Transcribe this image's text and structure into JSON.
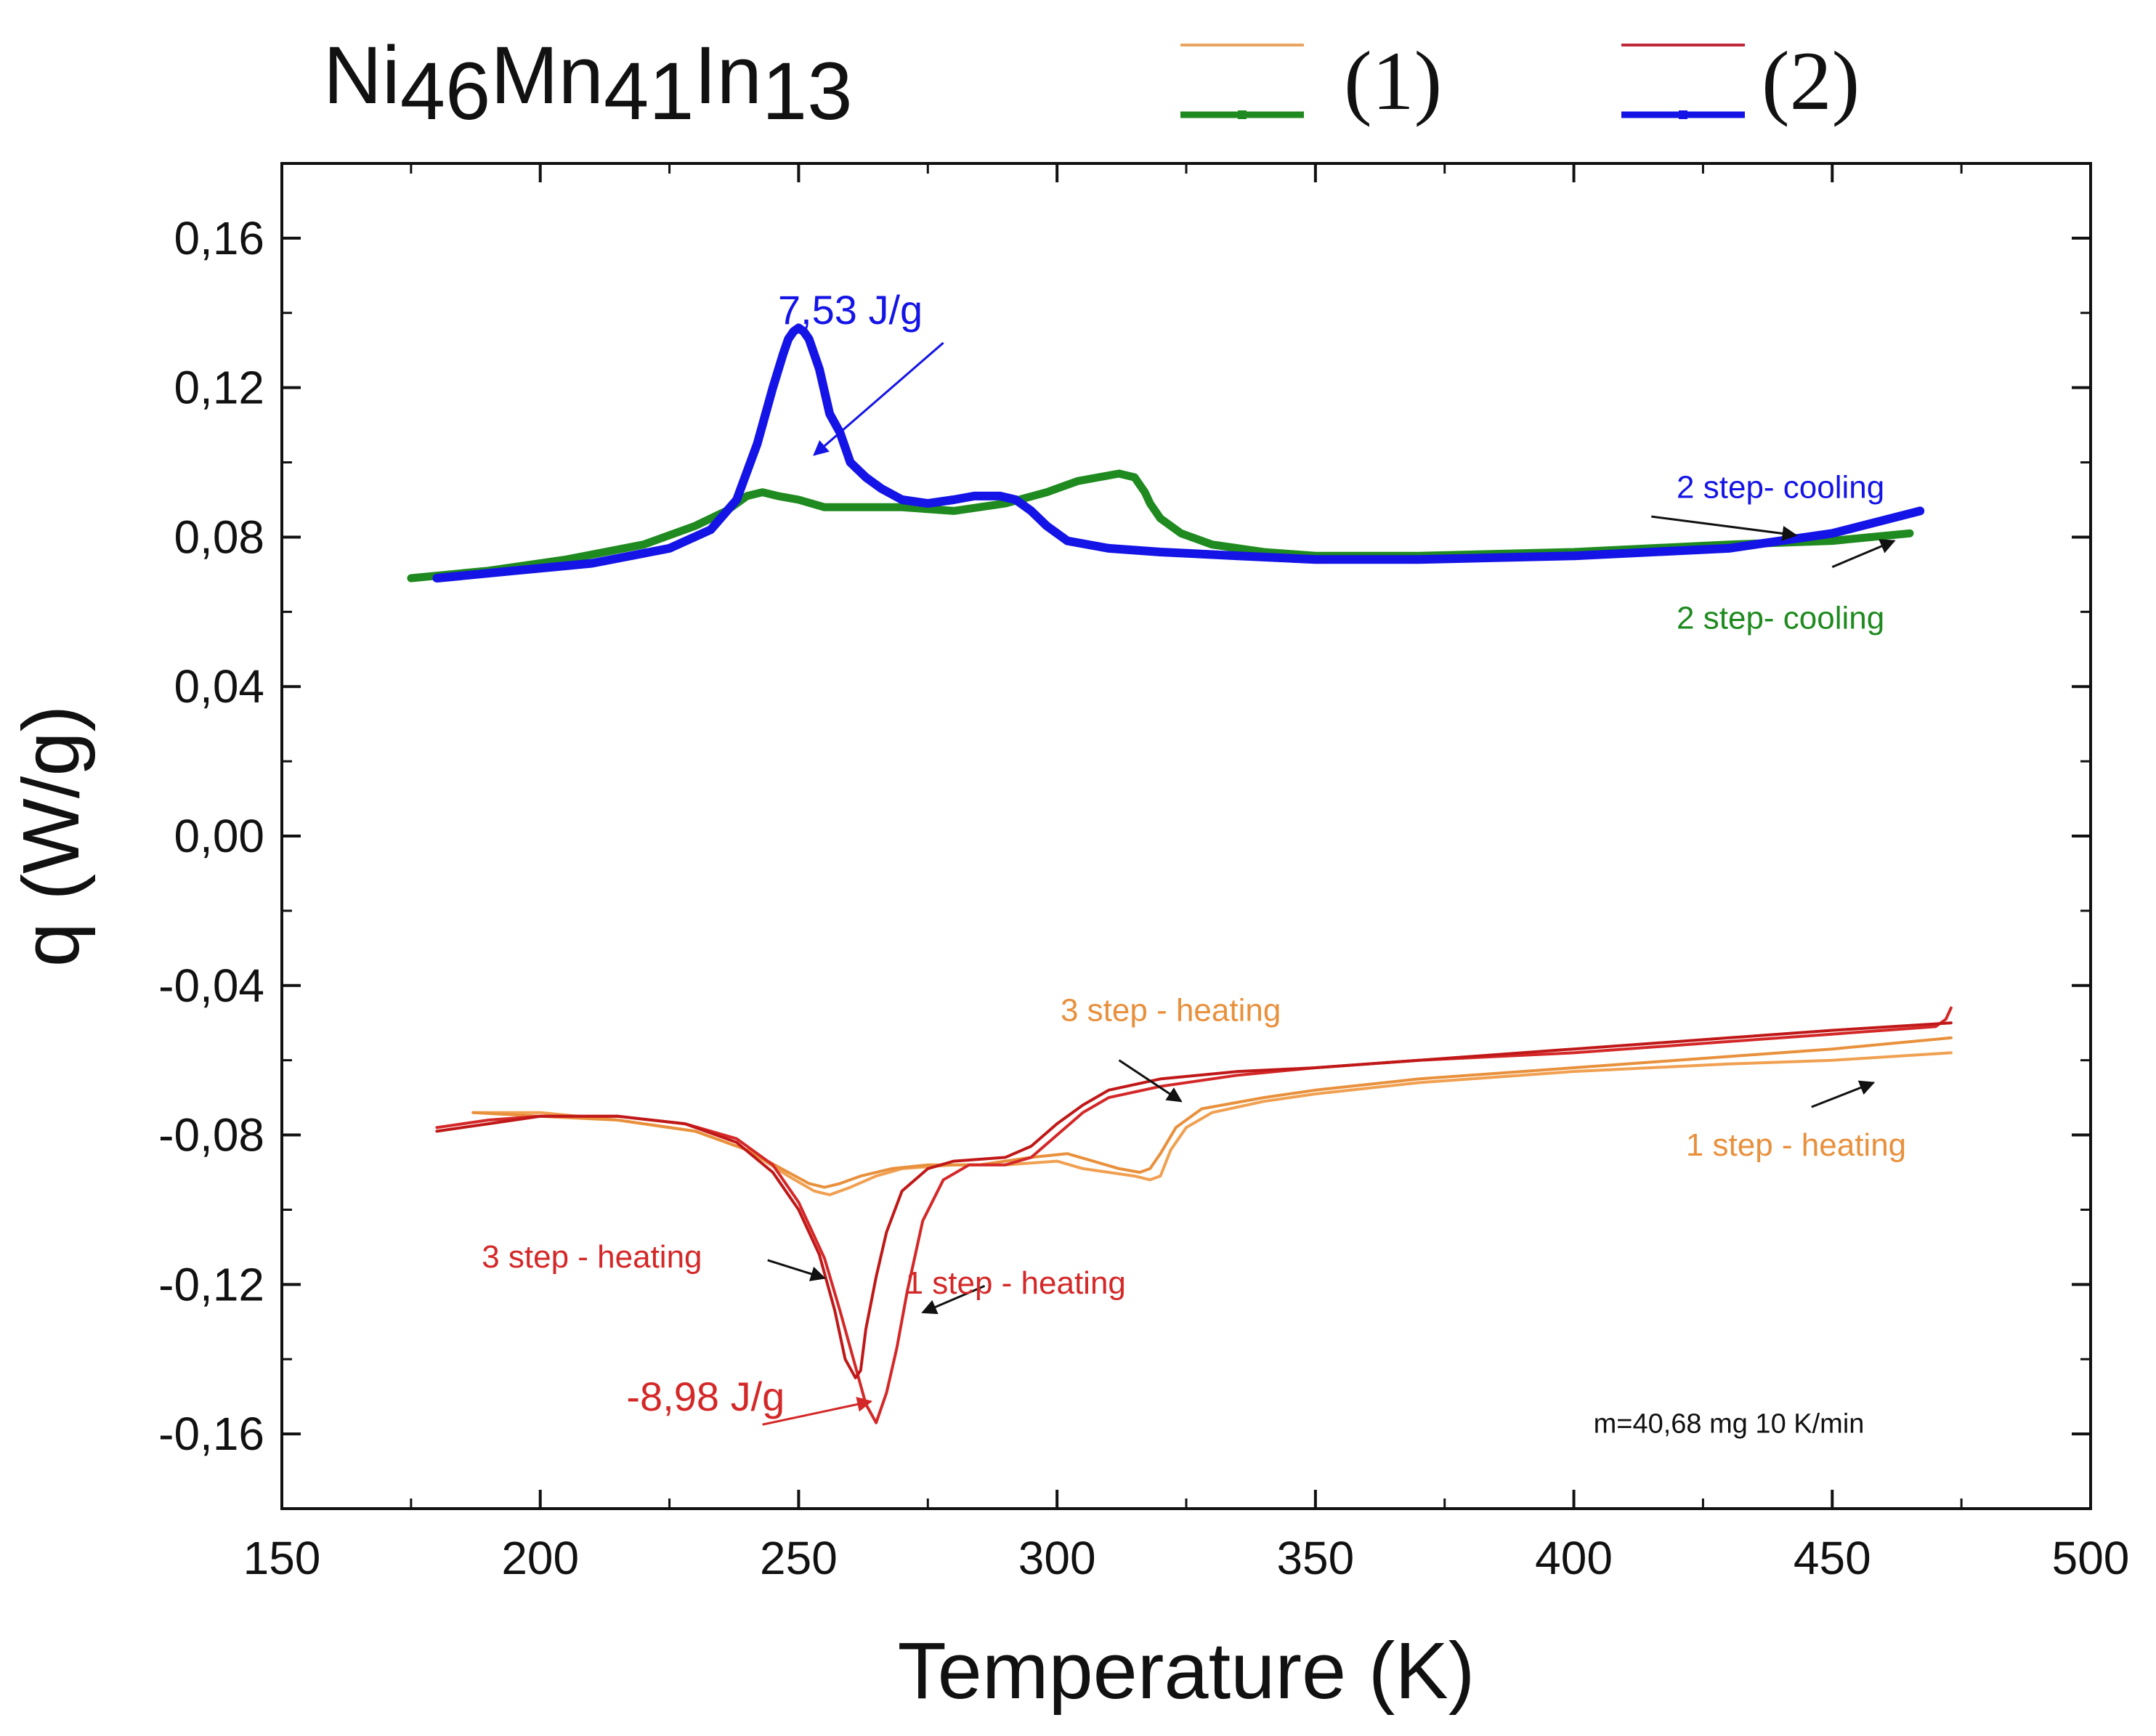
{
  "chart_data": {
    "type": "line",
    "title": {
      "parts": [
        {
          "text": "Ni",
          "sub": false
        },
        {
          "text": "46",
          "sub": true
        },
        {
          "text": "Mn",
          "sub": false
        },
        {
          "text": "41",
          "sub": true
        },
        {
          "text": "In",
          "sub": false
        },
        {
          "text": "13",
          "sub": true
        }
      ]
    },
    "xlabel": "Temperature (K)",
    "ylabel": "q (W/g)",
    "xlim": [
      150,
      500
    ],
    "ylim": [
      -0.18,
      0.18
    ],
    "x_ticks": [
      150,
      200,
      250,
      300,
      350,
      400,
      450,
      500
    ],
    "x_tick_labels": [
      "150",
      "200",
      "250",
      "300",
      "350",
      "400",
      "450",
      "500"
    ],
    "y_ticks": [
      -0.16,
      -0.12,
      -0.08,
      -0.04,
      0.0,
      0.04,
      0.08,
      0.12,
      0.16
    ],
    "y_tick_labels": [
      "-0,16",
      "-0,12",
      "-0,08",
      "-0,04",
      "0,00",
      "0,04",
      "0,08",
      "0,12",
      "0,16"
    ],
    "grid": false,
    "legend": {
      "position": "top, above plot",
      "entries": [
        {
          "label": "(1)",
          "colors": [
            "#e8a560",
            "#1f8a1f"
          ]
        },
        {
          "label": "(2)",
          "colors": [
            "#c0283a",
            "#1414e6"
          ]
        }
      ]
    },
    "series": [
      {
        "sample": "(1)",
        "color": "#1f8a1f",
        "x": [
          175,
          190,
          205,
          220,
          230,
          236,
          240,
          243,
          246,
          250,
          255,
          260,
          270,
          280,
          290,
          298,
          304,
          308,
          312,
          315,
          317,
          318,
          320,
          324,
          330,
          340,
          350,
          370,
          400,
          430,
          450,
          465
        ],
        "y": [
          0.069,
          0.071,
          0.074,
          0.078,
          0.083,
          0.087,
          0.091,
          0.092,
          0.091,
          0.09,
          0.088,
          0.088,
          0.088,
          0.087,
          0.089,
          0.092,
          0.095,
          0.096,
          0.097,
          0.096,
          0.092,
          0.089,
          0.085,
          0.081,
          0.078,
          0.076,
          0.075,
          0.075,
          0.076,
          0.078,
          0.079,
          0.081
        ]
      },
      {
        "sample": "(2)",
        "color": "#1414e6",
        "x": [
          180,
          195,
          210,
          225,
          233,
          238,
          242,
          245,
          247,
          248,
          249,
          250,
          251,
          252,
          254,
          256,
          258,
          260,
          263,
          266,
          270,
          275,
          280,
          284,
          287,
          289,
          292,
          295,
          298,
          302,
          310,
          320,
          335,
          350,
          370,
          400,
          430,
          450,
          467
        ],
        "y": [
          0.069,
          0.071,
          0.073,
          0.077,
          0.082,
          0.09,
          0.105,
          0.12,
          0.129,
          0.133,
          0.135,
          0.136,
          0.135,
          0.133,
          0.125,
          0.113,
          0.108,
          0.1,
          0.096,
          0.093,
          0.09,
          0.089,
          0.09,
          0.091,
          0.091,
          0.091,
          0.09,
          0.087,
          0.083,
          0.079,
          0.077,
          0.076,
          0.075,
          0.074,
          0.074,
          0.075,
          0.077,
          0.081,
          0.087
        ]
      },
      {
        "sample": "(1)",
        "step": "1 step - heating",
        "color": "#f0a050",
        "x": [
          187,
          200,
          215,
          230,
          240,
          248,
          253,
          256,
          260,
          265,
          270,
          280,
          290,
          300,
          305,
          310,
          315,
          318,
          320,
          322,
          325,
          330,
          340,
          350,
          370,
          400,
          430,
          450,
          473
        ],
        "y": [
          -0.074,
          -0.074,
          -0.076,
          -0.079,
          -0.084,
          -0.091,
          -0.095,
          -0.096,
          -0.094,
          -0.091,
          -0.089,
          -0.088,
          -0.088,
          -0.087,
          -0.089,
          -0.09,
          -0.091,
          -0.092,
          -0.091,
          -0.084,
          -0.078,
          -0.074,
          -0.071,
          -0.069,
          -0.066,
          -0.063,
          -0.061,
          -0.06,
          -0.058
        ]
      },
      {
        "sample": "(1)",
        "step": "3 step - heating",
        "color": "#e8903c",
        "x": [
          187,
          200,
          215,
          230,
          240,
          248,
          252,
          255,
          258,
          262,
          268,
          275,
          285,
          295,
          302,
          307,
          312,
          316,
          318,
          320,
          323,
          328,
          340,
          350,
          370,
          400,
          430,
          450,
          473
        ],
        "y": [
          -0.074,
          -0.075,
          -0.076,
          -0.079,
          -0.084,
          -0.09,
          -0.093,
          -0.094,
          -0.093,
          -0.091,
          -0.089,
          -0.088,
          -0.088,
          -0.086,
          -0.085,
          -0.087,
          -0.089,
          -0.09,
          -0.089,
          -0.085,
          -0.078,
          -0.073,
          -0.07,
          -0.068,
          -0.065,
          -0.062,
          -0.059,
          -0.057,
          -0.054
        ]
      },
      {
        "sample": "(2)",
        "step": "1 step - heating",
        "color": "#d42828",
        "x": [
          180,
          190,
          200,
          215,
          228,
          238,
          245,
          250,
          255,
          258,
          261,
          263,
          265,
          267,
          269,
          271,
          274,
          278,
          283,
          290,
          295,
          300,
          305,
          310,
          320,
          335,
          350,
          370,
          400,
          430,
          450,
          470,
          472,
          473
        ],
        "y": [
          -0.078,
          -0.076,
          -0.075,
          -0.075,
          -0.077,
          -0.081,
          -0.088,
          -0.098,
          -0.113,
          -0.127,
          -0.142,
          -0.152,
          -0.157,
          -0.149,
          -0.137,
          -0.122,
          -0.103,
          -0.092,
          -0.088,
          -0.088,
          -0.086,
          -0.08,
          -0.074,
          -0.07,
          -0.067,
          -0.064,
          -0.062,
          -0.06,
          -0.058,
          -0.055,
          -0.053,
          -0.051,
          -0.049,
          -0.046
        ]
      },
      {
        "sample": "(2)",
        "step": "3 step - heating",
        "color": "#c01818",
        "x": [
          180,
          190,
          200,
          215,
          228,
          238,
          245,
          250,
          254,
          257,
          259,
          261,
          262,
          263,
          265,
          267,
          270,
          275,
          280,
          290,
          295,
          300,
          305,
          310,
          320,
          335,
          350,
          370,
          400,
          430,
          450,
          473
        ],
        "y": [
          -0.079,
          -0.077,
          -0.075,
          -0.075,
          -0.077,
          -0.082,
          -0.09,
          -0.1,
          -0.112,
          -0.127,
          -0.14,
          -0.145,
          -0.143,
          -0.132,
          -0.118,
          -0.106,
          -0.095,
          -0.089,
          -0.087,
          -0.086,
          -0.083,
          -0.077,
          -0.072,
          -0.068,
          -0.065,
          -0.063,
          -0.062,
          -0.06,
          -0.057,
          -0.054,
          -0.052,
          -0.05
        ]
      }
    ],
    "annotations": [
      {
        "text": "7,53 J/g",
        "color": "#1414e6",
        "x": 260,
        "y": 0.137,
        "size": 56,
        "arrow": [
          [
            278,
            0.132
          ],
          [
            253,
            0.102
          ]
        ],
        "arrow_color": "#1414e6"
      },
      {
        "text": "2 step- cooling",
        "color": "#1414e6",
        "x": 440,
        "y": 0.0905,
        "size": 44,
        "arrow": [
          [
            415,
            0.0855
          ],
          [
            443,
            0.0805
          ]
        ],
        "arrow_color": "#111111"
      },
      {
        "text": "2 step- cooling",
        "color": "#1f8a1f",
        "x": 440,
        "y": 0.0555,
        "size": 44,
        "arrow": [
          [
            450,
            0.072
          ],
          [
            462,
            0.079
          ]
        ],
        "arrow_color": "#111111"
      },
      {
        "text": "3 step - heating",
        "color": "#e8903c",
        "x": 322,
        "y": -0.0495,
        "size": 44,
        "arrow": [
          [
            312,
            -0.06
          ],
          [
            324,
            -0.071
          ]
        ],
        "arrow_color": "#111111"
      },
      {
        "text": "1 step - heating",
        "color": "#e8903c",
        "x": 443,
        "y": -0.0855,
        "size": 44,
        "arrow": [
          [
            446,
            -0.0725
          ],
          [
            458,
            -0.066
          ]
        ],
        "arrow_color": "#111111"
      },
      {
        "text": "3 step - heating",
        "color": "#d42828",
        "x": 210,
        "y": -0.1155,
        "size": 44,
        "arrow": [
          [
            244,
            -0.1135
          ],
          [
            255,
            -0.1183
          ]
        ],
        "arrow_color": "#111111"
      },
      {
        "text": "1 step - heating",
        "color": "#d42828",
        "x": 292,
        "y": -0.1225,
        "size": 44,
        "arrow": [
          [
            286,
            -0.1204
          ],
          [
            274,
            -0.1275
          ]
        ],
        "arrow_color": "#111111"
      },
      {
        "text": "-8,98 J/g",
        "color": "#d42828",
        "x": 232,
        "y": -0.1538,
        "size": 56,
        "arrow": [
          [
            243,
            -0.1575
          ],
          [
            264,
            -0.1513
          ]
        ],
        "arrow_color": "#d42828"
      },
      {
        "text": "m=40,68 mg  10 K/min",
        "color": "#111111",
        "x": 430,
        "y": -0.1597,
        "size": 38,
        "arrow": null,
        "arrow_color": null
      }
    ]
  }
}
